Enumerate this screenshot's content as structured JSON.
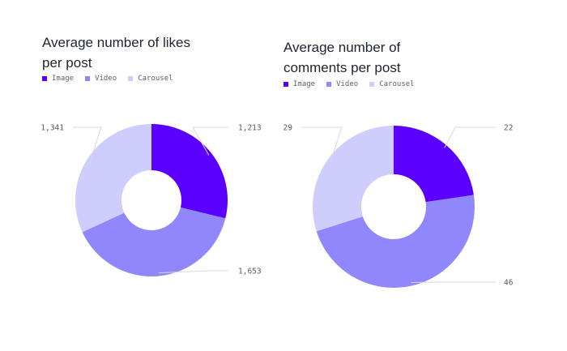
{
  "colors": {
    "image": "#5b00ff",
    "video": "#8f87fb",
    "carousel": "#cfcdfb",
    "leader": "#d9d9df"
  },
  "chart_data": [
    {
      "type": "pie",
      "variant": "donut",
      "title": "Average number of likes\nper post",
      "legend": [
        "Image",
        "Video",
        "Carousel"
      ],
      "categories": [
        "Image",
        "Video",
        "Carousel"
      ],
      "values": [
        1213,
        1653,
        1341
      ],
      "labels": [
        "1,213",
        "1,653",
        "1,341"
      ],
      "legend_position": "top-left"
    },
    {
      "type": "pie",
      "variant": "donut",
      "title": "Average number of\ncomments per post",
      "legend": [
        "Image",
        "Video",
        "Carousel"
      ],
      "categories": [
        "Image",
        "Video",
        "Carousel"
      ],
      "values": [
        22,
        46,
        29
      ],
      "labels": [
        "22",
        "46",
        "29"
      ],
      "legend_position": "top-left"
    }
  ]
}
